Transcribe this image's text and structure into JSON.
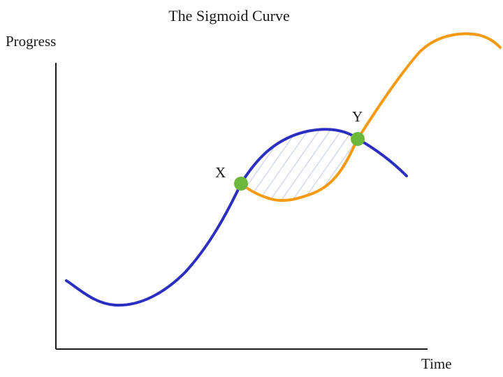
{
  "title": "The Sigmoid Curve",
  "axes": {
    "y_label": "Progress",
    "x_label": "Time"
  },
  "points": {
    "x_label": "X",
    "y_label": "Y"
  },
  "colors": {
    "first_curve": "#2b2fc0",
    "second_curve": "#f59a12",
    "points": "#6bb83a",
    "axis": "#1a1a1a",
    "hatch": "#a9b2e6"
  }
}
